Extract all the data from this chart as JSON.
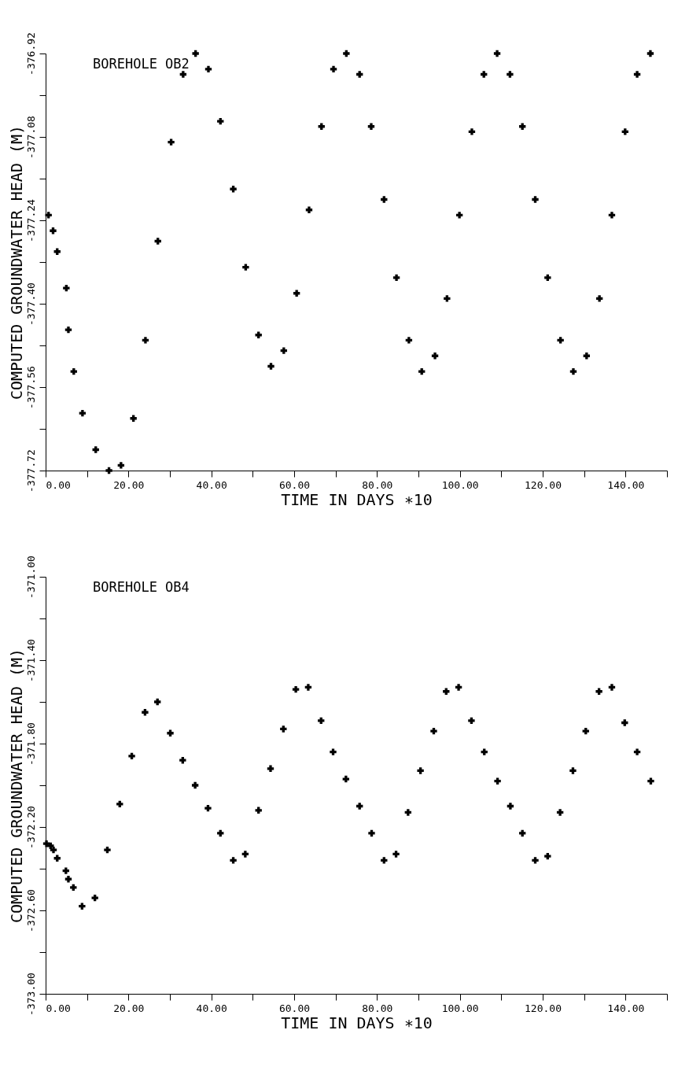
{
  "chart_data": [
    {
      "type": "scatter",
      "annotations": [
        "BOREHOLE OB2"
      ],
      "xlabel": "TIME IN DAYS ∗10",
      "ylabel": "COMPUTED GROUNDWATER HEAD (M)",
      "marker": "cross",
      "grid": false,
      "xlim": [
        0,
        150
      ],
      "ylim": [
        -377.72,
        -376.92
      ],
      "xticks": [
        {
          "value": 0,
          "label": "0.00"
        },
        {
          "value": 10,
          "label": null
        },
        {
          "value": 20,
          "label": "20.00"
        },
        {
          "value": 30,
          "label": null
        },
        {
          "value": 40,
          "label": "40.00"
        },
        {
          "value": 50,
          "label": null
        },
        {
          "value": 60,
          "label": "60.00"
        },
        {
          "value": 70,
          "label": null
        },
        {
          "value": 80,
          "label": "80.00"
        },
        {
          "value": 90,
          "label": null
        },
        {
          "value": 100,
          "label": "100.00"
        },
        {
          "value": 110,
          "label": null
        },
        {
          "value": 120,
          "label": "120.00"
        },
        {
          "value": 130,
          "label": null
        },
        {
          "value": 140,
          "label": "140.00"
        },
        {
          "value": 150,
          "label": null
        }
      ],
      "yticks": [
        -377.72,
        {
          "value": -377.64,
          "label": null
        },
        -377.56,
        {
          "value": -377.48,
          "label": null
        },
        {
          "value": -377.4,
          "label": "-377.40"
        },
        {
          "value": -377.32,
          "label": null
        },
        -377.24,
        {
          "value": -377.16,
          "label": null
        },
        -377.08,
        {
          "value": -377,
          "label": null
        },
        -376.92
      ],
      "series": [
        {
          "color": "#000000",
          "x": [
            0.7,
            1.8,
            2.8,
            5.0,
            5.5,
            6.8,
            8.9,
            12.1,
            15.3,
            18.2,
            21.2,
            24.1,
            27.1,
            30.3,
            33.2,
            36.2,
            39.3,
            42.2,
            45.3,
            48.3,
            51.4,
            54.4,
            57.5,
            60.6,
            63.6,
            66.6,
            69.5,
            72.6,
            75.8,
            78.6,
            81.7,
            84.7,
            87.7,
            90.8,
            94.0,
            96.9,
            99.9,
            102.9,
            105.8,
            109.0,
            112.1,
            115.1,
            118.2,
            121.2,
            124.3,
            127.4,
            130.6,
            133.7,
            136.7,
            139.9,
            142.8,
            146.0
          ],
          "values": [
            -377.23,
            -377.26,
            -377.3,
            -377.37,
            -377.45,
            -377.53,
            -377.61,
            -377.68,
            -377.72,
            -377.71,
            -377.62,
            -377.47,
            -377.28,
            -377.09,
            -376.96,
            -376.92,
            -376.95,
            -377.05,
            -377.18,
            -377.33,
            -377.46,
            -377.52,
            -377.49,
            -377.38,
            -377.22,
            -377.06,
            -376.95,
            -376.92,
            -376.96,
            -377.06,
            -377.2,
            -377.35,
            -377.47,
            -377.53,
            -377.5,
            -377.39,
            -377.23,
            -377.07,
            -376.96,
            -376.92,
            -376.96,
            -377.06,
            -377.2,
            -377.35,
            -377.47,
            -377.53,
            -377.5,
            -377.39,
            -377.23,
            -377.07,
            -376.96,
            -376.92
          ]
        }
      ]
    },
    {
      "type": "scatter",
      "annotations": [
        "BOREHOLE OB4"
      ],
      "xlabel": "TIME IN DAYS ∗10",
      "ylabel": "COMPUTED GROUNDWATER HEAD (M)",
      "marker": "cross",
      "grid": false,
      "xlim": [
        0,
        150
      ],
      "ylim": [
        -373,
        -371
      ],
      "xticks": [
        {
          "value": 0,
          "label": "0.00"
        },
        {
          "value": 10,
          "label": null
        },
        {
          "value": 20,
          "label": "20.00"
        },
        {
          "value": 30,
          "label": null
        },
        {
          "value": 40,
          "label": "40.00"
        },
        {
          "value": 50,
          "label": null
        },
        {
          "value": 60,
          "label": "60.00"
        },
        {
          "value": 70,
          "label": null
        },
        {
          "value": 80,
          "label": "80.00"
        },
        {
          "value": 90,
          "label": null
        },
        {
          "value": 100,
          "label": "100.00"
        },
        {
          "value": 110,
          "label": null
        },
        {
          "value": 120,
          "label": "120.00"
        },
        {
          "value": 130,
          "label": null
        },
        {
          "value": 140,
          "label": "140.00"
        },
        {
          "value": 150,
          "label": null
        }
      ],
      "yticks": [
        {
          "value": -373,
          "label": "-373.00"
        },
        {
          "value": -372.8,
          "label": null
        },
        {
          "value": -372.6,
          "label": "-372.60"
        },
        {
          "value": -372.4,
          "label": null
        },
        {
          "value": -372.2,
          "label": "-372.20"
        },
        {
          "value": -372,
          "label": null
        },
        {
          "value": -371.8,
          "label": "-371.80"
        },
        {
          "value": -371.6,
          "label": null
        },
        {
          "value": -371.4,
          "label": "-371.40"
        },
        {
          "value": -371.2,
          "label": null
        },
        {
          "value": -371,
          "label": "-371.00"
        }
      ],
      "series": [
        {
          "color": "#000000",
          "x": [
            0.2,
            1.2,
            1.9,
            2.8,
            4.9,
            5.5,
            6.7,
            8.8,
            11.9,
            14.9,
            17.9,
            20.8,
            24.0,
            27.0,
            30.1,
            33.1,
            36.1,
            39.2,
            42.2,
            45.3,
            48.2,
            51.4,
            54.3,
            57.4,
            60.4,
            63.4,
            66.5,
            69.4,
            72.5,
            75.8,
            78.7,
            81.7,
            84.6,
            87.5,
            90.5,
            93.7,
            96.7,
            99.7,
            102.8,
            105.9,
            109.1,
            112.2,
            115.1,
            118.2,
            121.2,
            124.2,
            127.3,
            130.4,
            133.6,
            136.7,
            139.8,
            142.8,
            146.1
          ],
          "values": [
            -372.28,
            -372.29,
            -372.31,
            -372.35,
            -372.41,
            -372.45,
            -372.49,
            -372.58,
            -372.54,
            -372.31,
            -372.09,
            -371.86,
            -371.65,
            -371.6,
            -371.75,
            -371.88,
            -372.0,
            -372.11,
            -372.23,
            -372.36,
            -372.33,
            -372.12,
            -371.92,
            -371.73,
            -371.54,
            -371.53,
            -371.69,
            -371.84,
            -371.97,
            -372.1,
            -372.23,
            -372.36,
            -372.33,
            -372.13,
            -371.93,
            -371.74,
            -371.55,
            -371.53,
            -371.69,
            -371.84,
            -371.98,
            -372.1,
            -372.23,
            -372.36,
            -372.34,
            -372.13,
            -371.93,
            -371.74,
            -371.55,
            -371.53,
            -371.7,
            -371.84,
            -371.98
          ]
        }
      ]
    }
  ]
}
